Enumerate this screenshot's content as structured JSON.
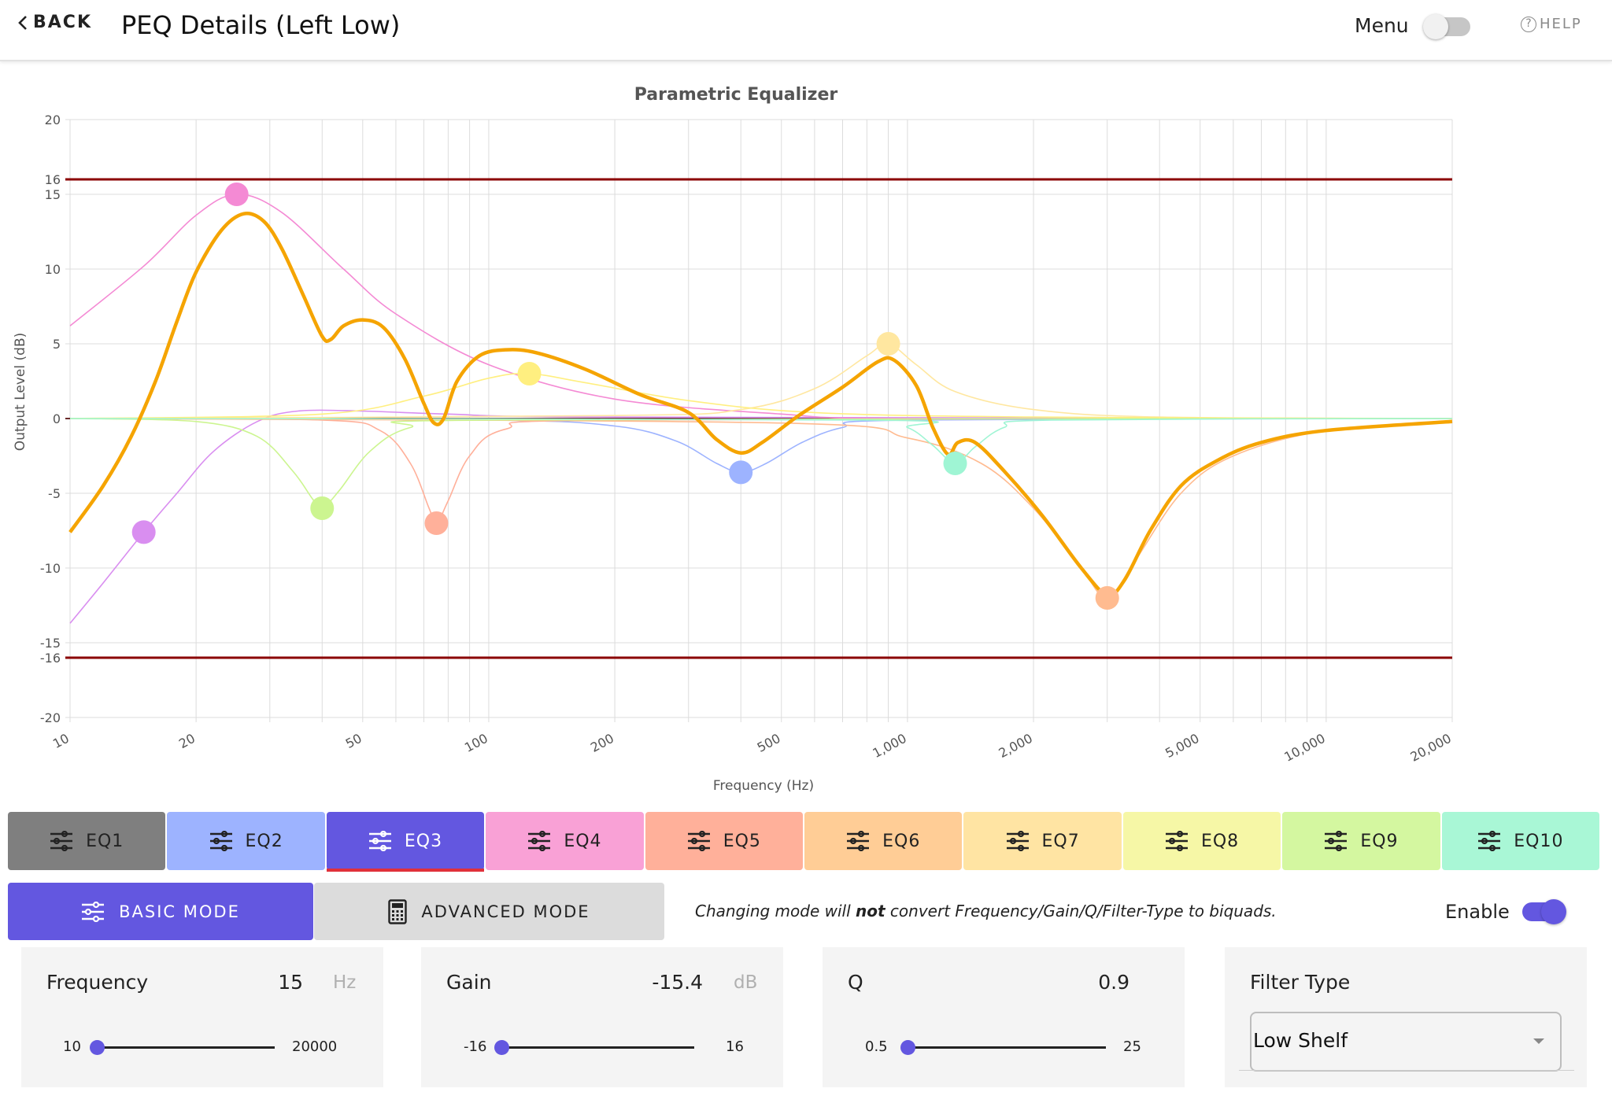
{
  "header": {
    "back_label": "BACK",
    "title": "PEQ Details (Left Low)",
    "menu_label": "Menu",
    "menu_toggle_on": false,
    "help_label": "HELP"
  },
  "chart_data": {
    "type": "line",
    "title": "Parametric Equalizer",
    "xlabel": "Frequency (Hz)",
    "ylabel": "Output Level (dB)",
    "x_scale": "log",
    "xlim": [
      10,
      20000
    ],
    "ylim": [
      -20,
      20
    ],
    "x_ticks": [
      10,
      20,
      50,
      100,
      200,
      500,
      1000,
      2000,
      5000,
      10000,
      20000
    ],
    "x_tick_labels": [
      "10",
      "20",
      "50",
      "100",
      "200",
      "500",
      "1,000",
      "2,000",
      "5,000",
      "10,000",
      "20,000"
    ],
    "y_ticks": [
      -20,
      -16,
      -15,
      -10,
      -5,
      0,
      5,
      10,
      15,
      16,
      20
    ],
    "limit_lines": [
      16,
      -16
    ],
    "limit_color": "#8b0000",
    "grid": true,
    "combined_color": "#f5a400",
    "combined_response": [
      [
        10,
        -7.6
      ],
      [
        12,
        -4.5
      ],
      [
        14,
        -1.2
      ],
      [
        16,
        2.5
      ],
      [
        18,
        6.5
      ],
      [
        20,
        9.8
      ],
      [
        23,
        12.6
      ],
      [
        26,
        13.7
      ],
      [
        29,
        13.2
      ],
      [
        32,
        11.4
      ],
      [
        36,
        8.3
      ],
      [
        40,
        5.5
      ],
      [
        42,
        5.3
      ],
      [
        45,
        6.2
      ],
      [
        50,
        6.6
      ],
      [
        56,
        6.1
      ],
      [
        63,
        4.0
      ],
      [
        70,
        1.0
      ],
      [
        74,
        -0.3
      ],
      [
        78,
        0.0
      ],
      [
        84,
        2.5
      ],
      [
        95,
        4.2
      ],
      [
        110,
        4.6
      ],
      [
        130,
        4.4
      ],
      [
        170,
        3.3
      ],
      [
        230,
        1.6
      ],
      [
        300,
        0.4
      ],
      [
        350,
        -1.4
      ],
      [
        400,
        -2.3
      ],
      [
        450,
        -1.6
      ],
      [
        550,
        0.2
      ],
      [
        700,
        2.1
      ],
      [
        850,
        3.8
      ],
      [
        930,
        3.9
      ],
      [
        1050,
        2.2
      ],
      [
        1150,
        -0.6
      ],
      [
        1250,
        -2.4
      ],
      [
        1320,
        -1.6
      ],
      [
        1450,
        -1.6
      ],
      [
        1700,
        -3.5
      ],
      [
        2100,
        -6.5
      ],
      [
        2600,
        -10.0
      ],
      [
        3000,
        -11.8
      ],
      [
        3300,
        -10.8
      ],
      [
        3800,
        -7.5
      ],
      [
        4500,
        -4.5
      ],
      [
        5500,
        -2.8
      ],
      [
        7000,
        -1.6
      ],
      [
        10000,
        -0.8
      ],
      [
        20000,
        -0.2
      ]
    ],
    "bands": [
      {
        "name": "EQ1",
        "color": "#d98ef0",
        "freq": 15,
        "gain": -7.6,
        "curve": [
          [
            10,
            -13.7
          ],
          [
            12,
            -11
          ],
          [
            15,
            -7.6
          ],
          [
            18,
            -5
          ],
          [
            22,
            -2.2
          ],
          [
            28,
            -0.2
          ],
          [
            35,
            0.5
          ],
          [
            50,
            0.5
          ],
          [
            80,
            0.3
          ],
          [
            200,
            0.1
          ],
          [
            20000,
            0
          ]
        ]
      },
      {
        "name": "EQ2",
        "color": "#9db3ff",
        "freq": 400,
        "gain": -3.6,
        "curve": [
          [
            10,
            0
          ],
          [
            100,
            -0.1
          ],
          [
            200,
            -0.5
          ],
          [
            280,
            -1.5
          ],
          [
            350,
            -3
          ],
          [
            400,
            -3.6
          ],
          [
            460,
            -3
          ],
          [
            560,
            -1.6
          ],
          [
            700,
            -0.6
          ],
          [
            1000,
            -0.1
          ],
          [
            20000,
            0
          ]
        ]
      },
      {
        "name": "EQ3",
        "color": "#f48ad4",
        "freq": 25,
        "gain": 15,
        "curve": [
          [
            10,
            6.2
          ],
          [
            15,
            10.2
          ],
          [
            20,
            13.6
          ],
          [
            25,
            15
          ],
          [
            32,
            13.8
          ],
          [
            45,
            10
          ],
          [
            60,
            7
          ],
          [
            100,
            3.6
          ],
          [
            200,
            1.3
          ],
          [
            500,
            0.3
          ],
          [
            1000,
            0
          ],
          [
            20000,
            0
          ]
        ]
      },
      {
        "name": "EQ4",
        "color": "#ffb09a",
        "freq": 75,
        "gain": -7,
        "curve": [
          [
            10,
            0
          ],
          [
            40,
            -0.1
          ],
          [
            55,
            -0.8
          ],
          [
            65,
            -3
          ],
          [
            72,
            -6
          ],
          [
            75,
            -7
          ],
          [
            80,
            -5.5
          ],
          [
            90,
            -2.5
          ],
          [
            110,
            -0.7
          ],
          [
            200,
            -0.1
          ],
          [
            20000,
            0
          ]
        ]
      },
      {
        "name": "EQ5",
        "color": "#ffbb90",
        "freq": 3000,
        "gain": -12,
        "curve": [
          [
            10,
            0
          ],
          [
            500,
            -0.3
          ],
          [
            1000,
            -1.3
          ],
          [
            1500,
            -3
          ],
          [
            2000,
            -6
          ],
          [
            2600,
            -10
          ],
          [
            3000,
            -12
          ],
          [
            3500,
            -9.5
          ],
          [
            4500,
            -5
          ],
          [
            6000,
            -2.5
          ],
          [
            10000,
            -0.8
          ],
          [
            20000,
            -0.2
          ]
        ]
      },
      {
        "name": "EQ6",
        "color": "#ffe7a0",
        "freq": 900,
        "gain": 5,
        "curve": [
          [
            10,
            0
          ],
          [
            200,
            0.2
          ],
          [
            400,
            0.6
          ],
          [
            600,
            2
          ],
          [
            800,
            4.2
          ],
          [
            900,
            5
          ],
          [
            1050,
            3.6
          ],
          [
            1300,
            1.8
          ],
          [
            2000,
            0.6
          ],
          [
            4000,
            0.1
          ],
          [
            20000,
            0
          ]
        ]
      },
      {
        "name": "EQ7",
        "color": "#ffef80",
        "freq": 125,
        "gain": 3,
        "curve": [
          [
            10,
            0
          ],
          [
            40,
            0.3
          ],
          [
            70,
            1.5
          ],
          [
            100,
            2.7
          ],
          [
            125,
            3
          ],
          [
            170,
            2.4
          ],
          [
            300,
            1.2
          ],
          [
            600,
            0.4
          ],
          [
            2000,
            0.1
          ],
          [
            20000,
            0
          ]
        ]
      },
      {
        "name": "EQ8",
        "color": "#ccf590",
        "freq": 40,
        "gain": -6,
        "curve": [
          [
            10,
            0
          ],
          [
            20,
            -0.2
          ],
          [
            28,
            -1.2
          ],
          [
            34,
            -3.5
          ],
          [
            38,
            -5.4
          ],
          [
            40,
            -6
          ],
          [
            44,
            -4.8
          ],
          [
            52,
            -2.2
          ],
          [
            65,
            -0.6
          ],
          [
            100,
            -0.1
          ],
          [
            20000,
            0
          ]
        ]
      },
      {
        "name": "EQ9",
        "color": "#9ff5d4",
        "freq": 1300,
        "gain": -3,
        "curve": [
          [
            10,
            0
          ],
          [
            800,
            -0.1
          ],
          [
            1000,
            -0.6
          ],
          [
            1150,
            -1.8
          ],
          [
            1300,
            -3
          ],
          [
            1450,
            -1.9
          ],
          [
            1700,
            -0.6
          ],
          [
            2200,
            -0.1
          ],
          [
            20000,
            0
          ]
        ]
      }
    ]
  },
  "eq_tabs": [
    {
      "label": "EQ1",
      "color": "#7f7f7f",
      "active": false
    },
    {
      "label": "EQ2",
      "color": "#9db3ff",
      "active": false
    },
    {
      "label": "EQ3",
      "color": "#6357e0",
      "active": true
    },
    {
      "label": "EQ4",
      "color": "#f9a1d6",
      "active": false
    },
    {
      "label": "EQ5",
      "color": "#ffb09a",
      "active": false
    },
    {
      "label": "EQ6",
      "color": "#ffcd96",
      "active": false
    },
    {
      "label": "EQ7",
      "color": "#ffe4a3",
      "active": false
    },
    {
      "label": "EQ8",
      "color": "#f6f7a6",
      "active": false
    },
    {
      "label": "EQ9",
      "color": "#d4f7a0",
      "active": false
    },
    {
      "label": "EQ10",
      "color": "#a9f7d6",
      "active": false
    }
  ],
  "modes": {
    "basic_label": "BASIC MODE",
    "advanced_label": "ADVANCED MODE",
    "note_prefix": "Changing mode will ",
    "note_emphasis": "not",
    "note_suffix": " convert Frequency/Gain/Q/Filter-Type to biquads.",
    "enable_label": "Enable",
    "enabled": true
  },
  "params": {
    "frequency": {
      "label": "Frequency",
      "value": "15",
      "unit": "Hz",
      "min": "10",
      "max": "20000",
      "fraction": 0.0
    },
    "gain": {
      "label": "Gain",
      "value": "-15.4",
      "unit": "dB",
      "min": "-16",
      "max": "16",
      "fraction": 0.02
    },
    "q": {
      "label": "Q",
      "value": "0.9",
      "min": "0.5",
      "max": "25",
      "fraction": 0.016
    },
    "filter_type": {
      "label": "Filter Type",
      "value": "Low Shelf"
    }
  },
  "colors": {
    "accent": "#6357e0",
    "active_tab_underline": "#e0303a"
  }
}
